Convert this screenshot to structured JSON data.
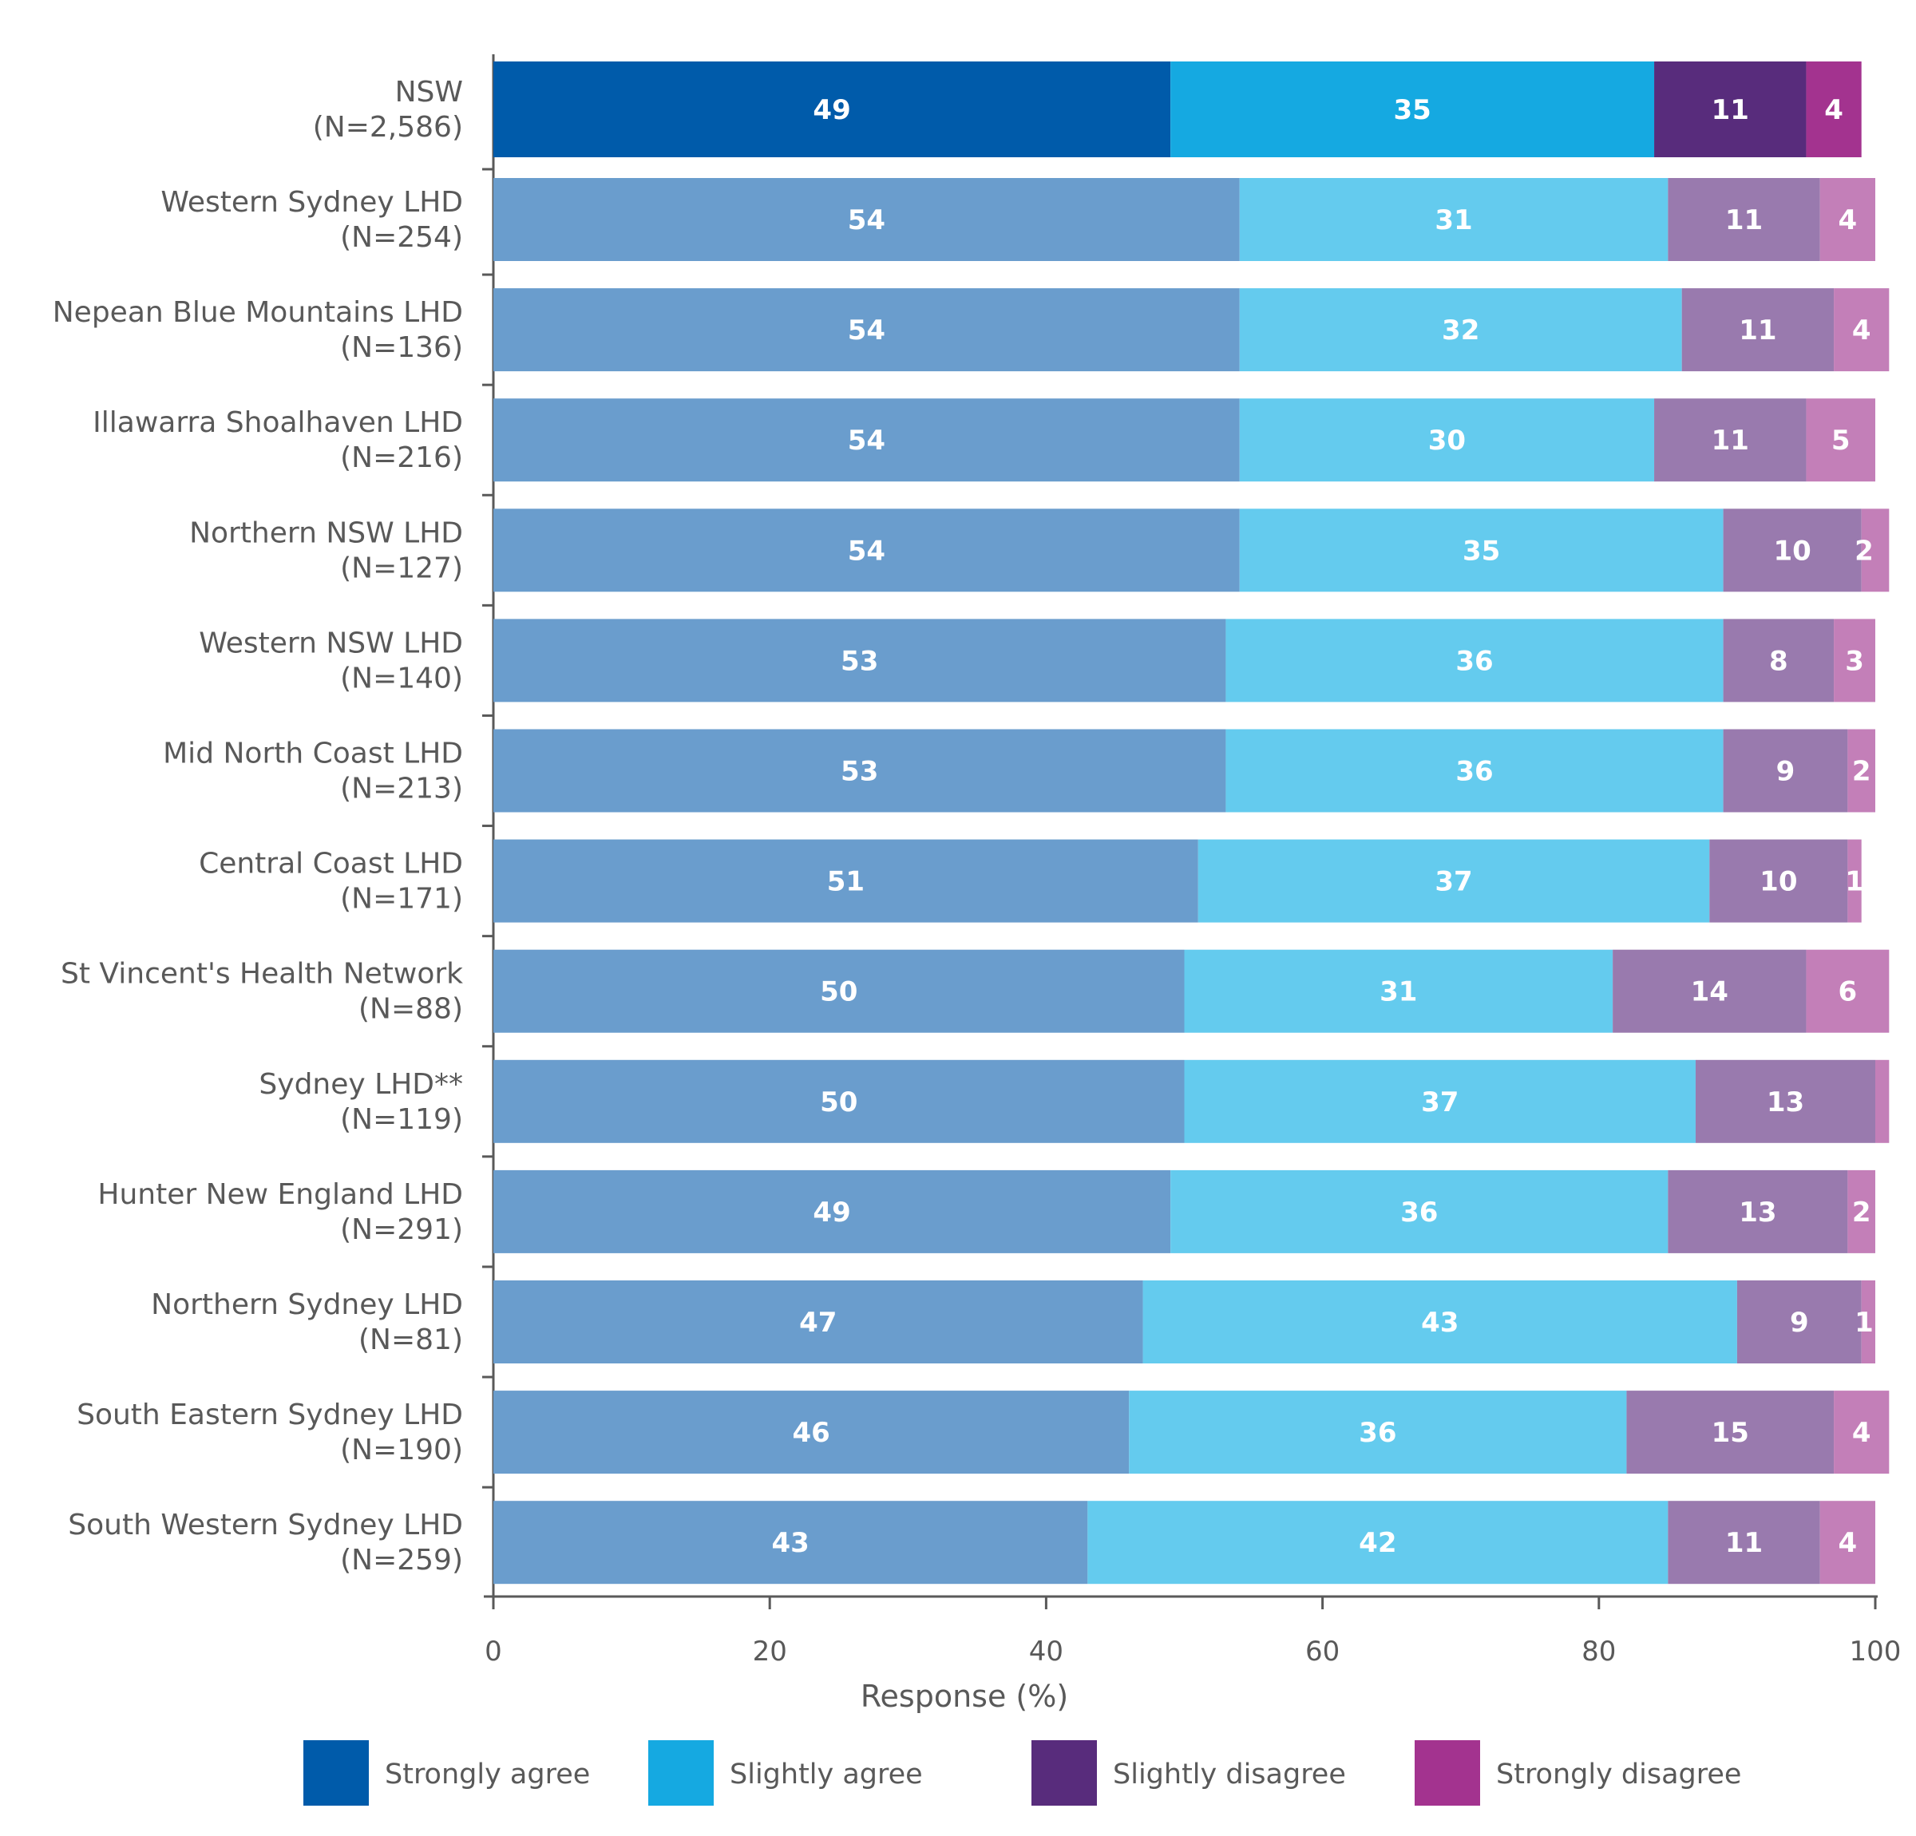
{
  "chart_data": {
    "type": "bar",
    "orientation": "horizontal",
    "stacked": true,
    "xlabel": "Response (%)",
    "ylabel": "",
    "xlim": [
      0,
      100
    ],
    "xticks": [
      "0",
      "20",
      "40",
      "60",
      "80",
      "100"
    ],
    "grid": false,
    "legend_position": "bottom",
    "categories": [
      [
        "NSW",
        "(N=2,586)"
      ],
      [
        "Western Sydney LHD",
        "(N=254)"
      ],
      [
        "Nepean Blue Mountains LHD",
        "(N=136)"
      ],
      [
        "Illawarra Shoalhaven LHD",
        "(N=216)"
      ],
      [
        "Northern NSW LHD",
        "(N=127)"
      ],
      [
        "Western NSW LHD",
        "(N=140)"
      ],
      [
        "Mid North Coast LHD",
        "(N=213)"
      ],
      [
        "Central Coast LHD",
        "(N=171)"
      ],
      [
        "St Vincent's Health Network",
        "(N=88)"
      ],
      [
        "Sydney LHD**",
        "(N=119)"
      ],
      [
        "Hunter New England LHD",
        "(N=291)"
      ],
      [
        "Northern Sydney LHD",
        "(N=81)"
      ],
      [
        "South Eastern Sydney LHD",
        "(N=190)"
      ],
      [
        "South Western Sydney LHD",
        "(N=259)"
      ]
    ],
    "series": [
      {
        "name": "Strongly agree",
        "color": "#005BAA",
        "color_lhd": "#6A9DCD",
        "values": [
          49,
          54,
          54,
          54,
          54,
          53,
          53,
          51,
          50,
          50,
          49,
          47,
          46,
          43
        ]
      },
      {
        "name": "Slightly agree",
        "color": "#15A9E1",
        "color_lhd": "#64CBEE",
        "values": [
          35,
          31,
          32,
          30,
          35,
          36,
          36,
          37,
          31,
          37,
          36,
          43,
          36,
          42
        ]
      },
      {
        "name": "Slightly disagree",
        "color": "#582C7C",
        "color_lhd": "#997AAE",
        "values": [
          11,
          11,
          11,
          11,
          10,
          8,
          9,
          10,
          14,
          13,
          13,
          9,
          15,
          11
        ]
      },
      {
        "name": "Strongly disagree",
        "color": "#A3338F",
        "color_lhd": "#C37FB8",
        "values": [
          4,
          4,
          4,
          5,
          2,
          3,
          2,
          1,
          6,
          1,
          2,
          1,
          4,
          4
        ],
        "labels": [
          "4",
          "4",
          "4",
          "5",
          "2",
          "3",
          "2",
          "1",
          "6",
          null,
          "2",
          "1",
          "4",
          "4"
        ]
      }
    ]
  }
}
